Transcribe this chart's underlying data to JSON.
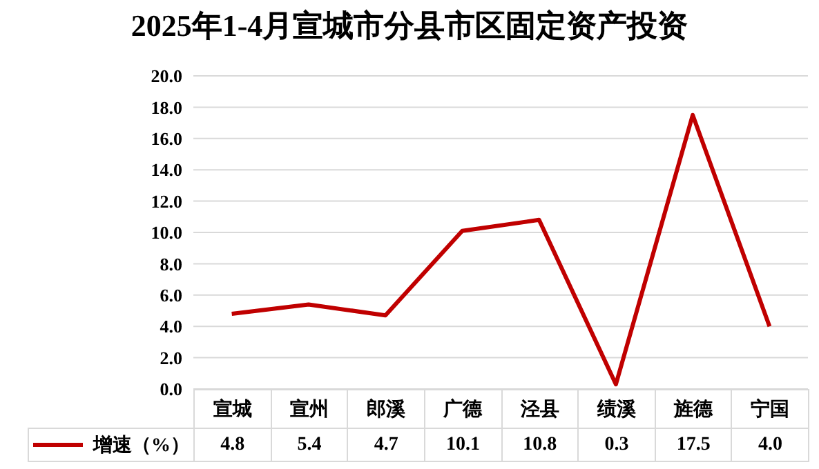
{
  "chart_data": {
    "type": "line",
    "title": "2025年1-4月宣城市分县市区固定资产投资",
    "categories": [
      "宣城",
      "宣州",
      "郎溪",
      "广德",
      "泾县",
      "绩溪",
      "旌德",
      "宁国"
    ],
    "series": [
      {
        "name": "增速（%）",
        "color": "#c00000",
        "values": [
          4.8,
          5.4,
          4.7,
          10.1,
          10.8,
          0.3,
          17.5,
          4.0
        ],
        "value_labels": [
          "4.8",
          "5.4",
          "4.7",
          "10.1",
          "10.8",
          "0.3",
          "17.5",
          "4.0"
        ]
      }
    ],
    "ylim": [
      0,
      20
    ],
    "yticks": [
      {
        "value": 0,
        "label": "0.0"
      },
      {
        "value": 2,
        "label": "2.0"
      },
      {
        "value": 4,
        "label": "4.0"
      },
      {
        "value": 6,
        "label": "6.0"
      },
      {
        "value": 8,
        "label": "8.0"
      },
      {
        "value": 10,
        "label": "10.0"
      },
      {
        "value": 12,
        "label": "12.0"
      },
      {
        "value": 14,
        "label": "14.0"
      },
      {
        "value": 16,
        "label": "16.0"
      },
      {
        "value": 18,
        "label": "18.0"
      },
      {
        "value": 20,
        "label": "20.0"
      }
    ],
    "grid": "y",
    "legend": "bottom",
    "marker": "none",
    "line_style": "solid"
  }
}
